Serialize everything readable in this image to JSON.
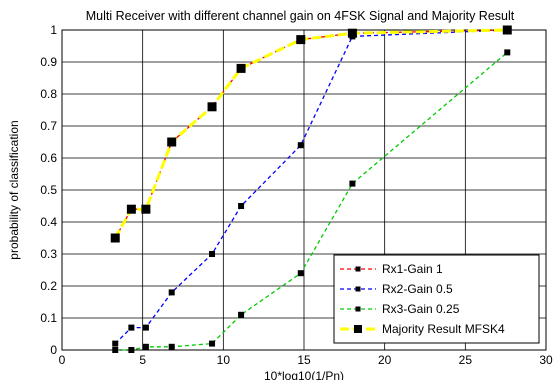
{
  "chart_data": {
    "type": "line",
    "title": "Multi Receiver with different channel gain on 4FSK Signal and Majority Result",
    "xlabel": "10*log10(1/Pn)",
    "ylabel": "probability of classification",
    "xlim": [
      0,
      30
    ],
    "ylim": [
      0,
      1
    ],
    "xticks": [
      0,
      5,
      10,
      15,
      20,
      25,
      30
    ],
    "yticks": [
      0,
      0.1,
      0.2,
      0.3,
      0.4,
      0.5,
      0.6,
      0.7,
      0.8,
      0.9,
      1
    ],
    "grid": true,
    "legend_position": "bottom-right",
    "series": [
      {
        "name": "Rx1-Gain 1",
        "color": "#ff0000",
        "x": [
          3.3,
          4.3,
          5.2,
          6.8,
          9.3,
          11.1,
          14.8,
          18.0,
          27.6
        ],
        "y": [
          0.35,
          0.44,
          0.44,
          0.65,
          0.76,
          0.88,
          0.97,
          0.99,
          1.0
        ]
      },
      {
        "name": "Rx2-Gain 0.5",
        "color": "#0000ff",
        "x": [
          3.3,
          4.3,
          5.2,
          6.8,
          9.3,
          11.1,
          14.8,
          18.0,
          27.6
        ],
        "y": [
          0.02,
          0.07,
          0.07,
          0.18,
          0.3,
          0.45,
          0.64,
          0.98,
          1.0
        ]
      },
      {
        "name": "Rx3-Gain 0.25",
        "color": "#00cc00",
        "x": [
          3.3,
          4.3,
          5.2,
          6.8,
          9.3,
          11.1,
          14.8,
          18.0,
          27.6
        ],
        "y": [
          0.0,
          0.0,
          0.01,
          0.01,
          0.02,
          0.11,
          0.24,
          0.52,
          0.93
        ]
      },
      {
        "name": "Majority Result MFSK4",
        "color": "#ffff00",
        "x": [
          3.3,
          4.3,
          5.2,
          6.8,
          9.3,
          11.1,
          14.8,
          18.0,
          27.6
        ],
        "y": [
          0.35,
          0.44,
          0.44,
          0.65,
          0.76,
          0.88,
          0.97,
          0.99,
          1.0
        ]
      }
    ]
  }
}
